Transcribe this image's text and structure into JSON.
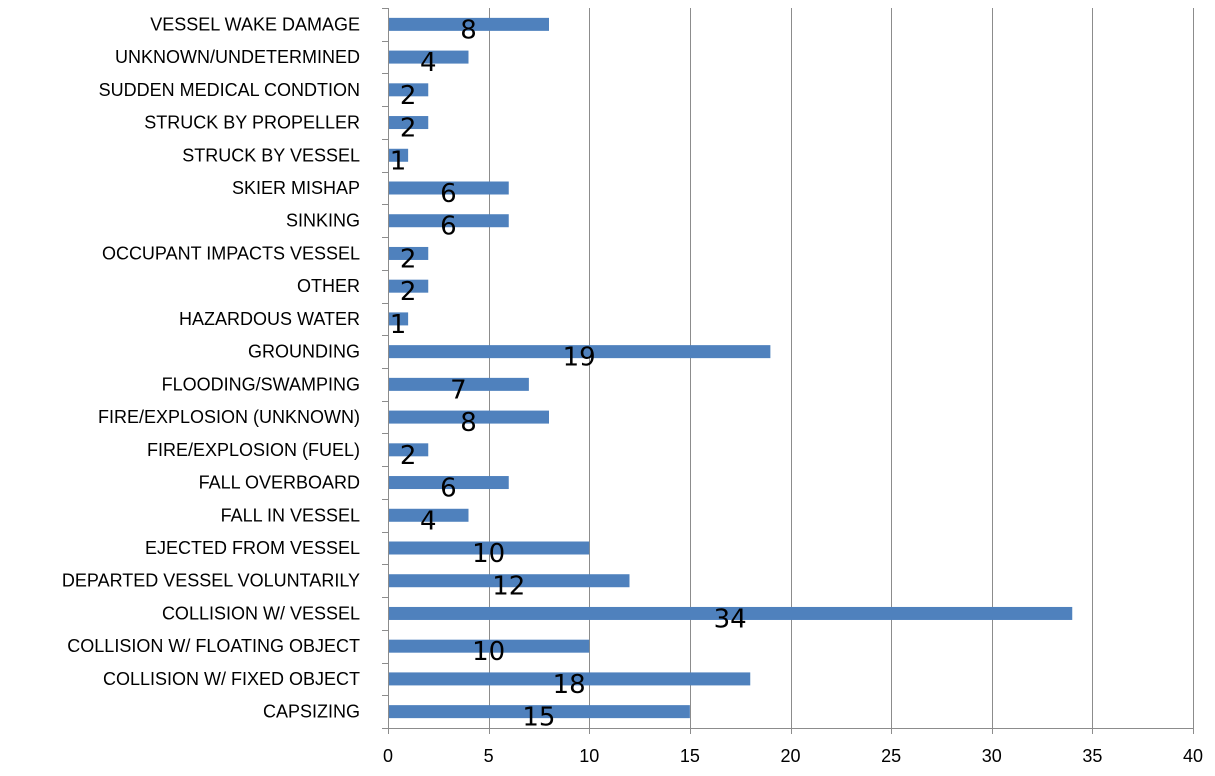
{
  "chart_data": {
    "type": "bar",
    "orientation": "horizontal",
    "categories": [
      "VESSEL WAKE DAMAGE",
      "UNKNOWN/UNDETERMINED",
      "SUDDEN MEDICAL CONDTION",
      "STRUCK BY PROPELLER",
      "STRUCK BY VESSEL",
      "SKIER MISHAP",
      "SINKING",
      "OCCUPANT IMPACTS VESSEL",
      "OTHER",
      "HAZARDOUS WATER",
      "GROUNDING",
      "FLOODING/SWAMPING",
      "FIRE/EXPLOSION (UNKNOWN)",
      "FIRE/EXPLOSION (FUEL)",
      "FALL OVERBOARD",
      "FALL IN VESSEL",
      "EJECTED FROM VESSEL",
      "DEPARTED VESSEL VOLUNTARILY",
      "COLLISION W/ VESSEL",
      "COLLISION W/ FLOATING OBJECT",
      "COLLISION W/ FIXED OBJECT",
      "CAPSIZING"
    ],
    "values": [
      8,
      4,
      2,
      2,
      1,
      6,
      6,
      2,
      2,
      1,
      19,
      7,
      8,
      2,
      6,
      4,
      10,
      12,
      34,
      10,
      18,
      15
    ],
    "xlim": [
      0,
      40
    ],
    "xticks": [
      0,
      5,
      10,
      15,
      20,
      25,
      30,
      35,
      40
    ],
    "grid": "vertical",
    "legend": "none",
    "bar_color": "#4f81bd",
    "grid_color": "#8c8c8c",
    "title": "",
    "xlabel": "",
    "ylabel": ""
  }
}
